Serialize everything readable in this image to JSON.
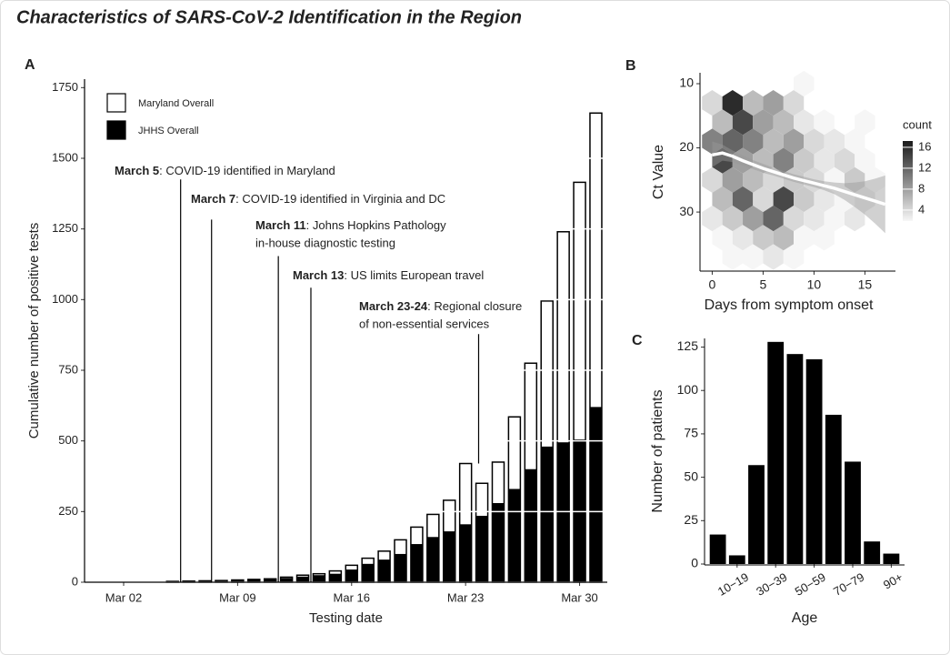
{
  "title": "Characteristics of SARS-CoV-2 Identification in the Region",
  "chart_data": [
    {
      "type": "bar",
      "panel": "A",
      "x": [
        1,
        2,
        3,
        4,
        5,
        6,
        7,
        8,
        9,
        10,
        11,
        12,
        13,
        14,
        15,
        16,
        17,
        18,
        19,
        20,
        21,
        22,
        23,
        24,
        25,
        26,
        27,
        28,
        29,
        30,
        31
      ],
      "xlim": [
        -0.4,
        31.7
      ],
      "xticks": [
        {
          "value": 2,
          "label": "Mar 02"
        },
        {
          "value": 9,
          "label": "Mar 09"
        },
        {
          "value": 16,
          "label": "Mar 16"
        },
        {
          "value": 23,
          "label": "Mar 23"
        },
        {
          "value": 30,
          "label": "Mar 30"
        }
      ],
      "ylim": [
        0,
        1780
      ],
      "yticks": [
        0,
        250,
        500,
        750,
        1000,
        1250,
        1500,
        1750
      ],
      "xlabel": "Testing date",
      "ylabel": "Cumulative number of positive tests",
      "grid": true,
      "grid_color": "#ffffff",
      "legend": "top-left",
      "series": [
        {
          "name": "Maryland Overall",
          "color": "#ffffff",
          "values": [
            0,
            0,
            0,
            0,
            3,
            4,
            5,
            6,
            8,
            10,
            12,
            18,
            25,
            30,
            40,
            60,
            85,
            110,
            150,
            195,
            240,
            290,
            420,
            350,
            425,
            585,
            775,
            995,
            1240,
            1415,
            1660
          ]
        },
        {
          "name": "JHHS Overall",
          "color": "#000000",
          "values": [
            0,
            0,
            0,
            0,
            1,
            2,
            3,
            4,
            6,
            8,
            10,
            15,
            20,
            25,
            30,
            45,
            65,
            80,
            100,
            135,
            160,
            180,
            205,
            235,
            280,
            330,
            400,
            480,
            495,
            505,
            620
          ]
        }
      ],
      "annotations": [
        {
          "x": 5.5,
          "y": [
            1425,
            0
          ],
          "bold": "March 5",
          "text": [
            ": COVID-19 identified in Maryland"
          ]
        },
        {
          "x": 7.4,
          "y": [
            1283,
            0
          ],
          "bold": "March 7",
          "text": [
            ": COVID-19 identified in Virginia and DC"
          ]
        },
        {
          "x": 11.5,
          "y": [
            1154,
            0
          ],
          "bold": "March 11",
          "text": [
            ": Johns Hopkins Pathology",
            "in-house diagnostic testing"
          ]
        },
        {
          "x": 13.5,
          "y": [
            1042,
            0
          ],
          "bold": "March 13",
          "text": [
            ": US limits European travel"
          ]
        },
        {
          "x": 23.8,
          "y": [
            878,
            420
          ],
          "bold": "March 23-24",
          "text": [
            ": Regional closure",
            "of non-essential services"
          ]
        }
      ]
    },
    {
      "type": "hexbin",
      "panel": "B",
      "xlim": [
        -1.2,
        18
      ],
      "xticks": [
        0,
        5,
        10,
        15
      ],
      "ylim": [
        39.2,
        8.3
      ],
      "yticks": [
        10,
        20,
        30
      ],
      "xlabel": "Days from symptom onset",
      "ylabel": "Ct Value",
      "bin_size": [
        2,
        3
      ],
      "cells": {
        "x": [
          0,
          2,
          4,
          6,
          8,
          9,
          1,
          3,
          5,
          7,
          9,
          11,
          15,
          0,
          2,
          4,
          6,
          8,
          10,
          12,
          14,
          1,
          3,
          5,
          7,
          9,
          11,
          13,
          15,
          0,
          2,
          4,
          6,
          8,
          10,
          12,
          14,
          16,
          1,
          3,
          5,
          7,
          9,
          11,
          13,
          15,
          0,
          2,
          4,
          6,
          8,
          10,
          12,
          14,
          1,
          3,
          5,
          7,
          9,
          11,
          2,
          4,
          6,
          8
        ],
        "y": [
          13,
          13,
          13,
          13,
          13,
          10,
          16,
          16,
          16,
          16,
          16,
          16,
          16,
          19,
          19,
          19,
          19,
          19,
          19,
          19,
          19,
          22,
          22,
          22,
          22,
          22,
          22,
          22,
          22,
          25,
          25,
          25,
          25,
          25,
          25,
          25,
          25,
          25,
          28,
          28,
          28,
          28,
          28,
          28,
          28,
          28,
          31,
          31,
          31,
          31,
          31,
          31,
          31,
          31,
          34,
          34,
          34,
          34,
          34,
          34,
          37,
          37,
          37,
          37
        ],
        "count": [
          4,
          16,
          6,
          8,
          4,
          2,
          6,
          14,
          8,
          6,
          3,
          2,
          2,
          10,
          12,
          10,
          6,
          8,
          4,
          3,
          2,
          14,
          8,
          6,
          10,
          5,
          3,
          4,
          2,
          4,
          8,
          6,
          4,
          5,
          4,
          2,
          5,
          2,
          6,
          12,
          4,
          14,
          5,
          3,
          2,
          3,
          3,
          5,
          8,
          12,
          4,
          3,
          2,
          3,
          2,
          3,
          5,
          6,
          2,
          2,
          2,
          2,
          3,
          2
        ]
      },
      "colorbar": {
        "title": "count",
        "lim": [
          1.9,
          17.2
        ],
        "ticks": [
          4,
          8,
          12,
          16
        ],
        "colors": [
          "#f7f7f7",
          "#1a1a1a"
        ]
      },
      "fit": {
        "x": [
          0,
          1,
          2,
          3,
          4,
          5,
          6,
          7,
          8,
          9,
          10,
          11,
          12,
          13,
          14,
          15,
          16,
          17
        ],
        "values": [
          21.1,
          20.8,
          21.3,
          22,
          22.6,
          23.2,
          23.7,
          24.2,
          24.7,
          25.1,
          25.5,
          25.9,
          26.3,
          26.8,
          27.3,
          27.8,
          28.3,
          28.8
        ],
        "lower": [
          19,
          19.5,
          20.4,
          21.2,
          21.9,
          22.5,
          23.1,
          23.6,
          24.1,
          24.5,
          24.9,
          25.2,
          25.4,
          25.5,
          25.4,
          25.2,
          24.8,
          24.3
        ],
        "upper": [
          23,
          22,
          22.2,
          22.8,
          23.3,
          23.9,
          24.3,
          24.8,
          25.3,
          25.7,
          26.1,
          26.6,
          27.2,
          28.1,
          29.2,
          30.4,
          31.8,
          33.3
        ]
      }
    },
    {
      "type": "bar",
      "panel": "C",
      "categories": [
        null,
        "10−19",
        null,
        "30−39",
        null,
        "50−59",
        null,
        "70−79",
        null,
        "90+"
      ],
      "values": [
        17,
        5,
        57,
        128,
        121,
        118,
        86,
        59,
        13,
        6
      ],
      "color": "#000000",
      "ylim": [
        0,
        130
      ],
      "yticks": [
        0,
        25,
        50,
        75,
        100,
        125
      ],
      "xlabel": "Age",
      "ylabel": "Number of patients"
    }
  ]
}
